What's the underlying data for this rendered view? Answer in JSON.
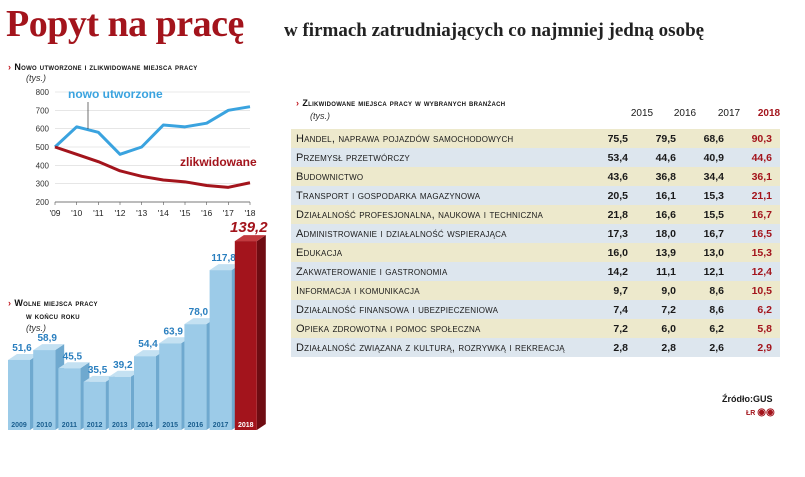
{
  "header": {
    "title": "Popyt na pracę",
    "subtitle": "w firmach zatrudniających co najmniej jedną osobę"
  },
  "colors": {
    "accent": "#a3141c",
    "created": "#3aa3df",
    "liquidated": "#a3141c",
    "bar": "#9ccbe8",
    "bar_highlight": "#a3141c"
  },
  "line_section": {
    "heading": "Nowo utworzone i zlikwidowane miejsca pracy",
    "unit": "(tys.)"
  },
  "bar_section": {
    "heading_line1": "Wolne miejsca pracy",
    "heading_line2": "w końcu roku",
    "unit": "(tys.)"
  },
  "table_section": {
    "heading": "Zlikwidowane miejsca pracy w wybranych branżach",
    "unit": "(tys.)"
  },
  "source": "Źródło:GUS",
  "credit": "ŁR",
  "chart_data": [
    {
      "type": "line",
      "x": [
        "'09",
        "'10",
        "'11",
        "'12",
        "'13",
        "'14",
        "'15",
        "'16",
        "'17",
        "'18"
      ],
      "yticks": [
        200,
        300,
        400,
        500,
        600,
        700,
        800
      ],
      "ylim": [
        200,
        800
      ],
      "series": [
        {
          "name": "nowo utworzone",
          "values": [
            500,
            610,
            580,
            460,
            500,
            620,
            610,
            630,
            700,
            720
          ]
        },
        {
          "name": "zlikwidowane",
          "values": [
            500,
            460,
            420,
            370,
            340,
            320,
            310,
            290,
            280,
            305
          ]
        }
      ]
    },
    {
      "type": "bar",
      "categories": [
        "2009",
        "2010",
        "2011",
        "2012",
        "2013",
        "2014",
        "2015",
        "2016",
        "2017",
        "2018"
      ],
      "labels": [
        "51,6",
        "58,9",
        "45,5",
        "35,5",
        "39,2",
        "54,4",
        "63,9",
        "78,0",
        "117,8",
        "139,2"
      ],
      "values": [
        51.6,
        58.9,
        45.5,
        35.5,
        39.2,
        54.4,
        63.9,
        78.0,
        117.8,
        139.2
      ]
    },
    {
      "type": "table",
      "columns": [
        "2015",
        "2016",
        "2017",
        "2018"
      ],
      "rows": [
        {
          "category": "Handel, naprawa pojazdów samochodowych",
          "values": [
            "75,5",
            "79,5",
            "68,6",
            "90,3"
          ]
        },
        {
          "category": "Przemysł przetwórczy",
          "values": [
            "53,4",
            "44,6",
            "40,9",
            "44,6"
          ]
        },
        {
          "category": "Budownictwo",
          "values": [
            "43,6",
            "36,8",
            "34,4",
            "36,1"
          ]
        },
        {
          "category": "Transport i gospodarka magazynowa",
          "values": [
            "20,5",
            "16,1",
            "15,3",
            "21,1"
          ]
        },
        {
          "category": "Działalność profesjonalna, naukowa i techniczna",
          "values": [
            "21,8",
            "16,6",
            "15,5",
            "16,7"
          ]
        },
        {
          "category": "Administrowanie i działalność wspierająca",
          "values": [
            "17,3",
            "18,0",
            "16,7",
            "16,5"
          ]
        },
        {
          "category": "Edukacja",
          "values": [
            "16,0",
            "13,9",
            "13,0",
            "15,3"
          ]
        },
        {
          "category": "Zakwaterowanie i gastronomia",
          "values": [
            "14,2",
            "11,1",
            "12,1",
            "12,4"
          ]
        },
        {
          "category": "Informacja i komunikacja",
          "values": [
            "9,7",
            "9,0",
            "8,6",
            "10,5"
          ]
        },
        {
          "category": "Działalność finansowa i ubezpieczeniowa",
          "values": [
            "7,4",
            "7,2",
            "8,6",
            "6,2"
          ]
        },
        {
          "category": "Opieka zdrowotna i pomoc społeczna",
          "values": [
            "7,2",
            "6,0",
            "6,2",
            "5,8"
          ]
        },
        {
          "category": "Działalność związana z kulturą, rozrywką i rekreacją",
          "values": [
            "2,8",
            "2,8",
            "2,6",
            "2,9"
          ]
        }
      ]
    }
  ]
}
